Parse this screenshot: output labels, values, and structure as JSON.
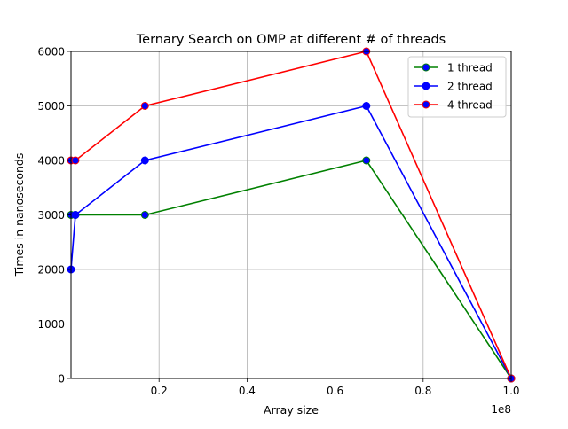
{
  "chart_data": {
    "type": "line",
    "title": "Ternary Search on OMP at different # of threads",
    "xlabel": "Array size",
    "ylabel": "Times in nanoseconds",
    "x_offset_label": "1e8",
    "xlim": [
      0,
      1.0
    ],
    "ylim": [
      0,
      6000
    ],
    "x_ticks": [
      0.2,
      0.4,
      0.6,
      0.8,
      1.0
    ],
    "x_tick_labels": [
      "0.2",
      "0.4",
      "0.6",
      "0.8",
      "1.0"
    ],
    "y_ticks": [
      0,
      1000,
      2000,
      3000,
      4000,
      5000,
      6000
    ],
    "y_tick_labels": [
      "0",
      "1000",
      "2000",
      "3000",
      "4000",
      "5000",
      "6000"
    ],
    "grid": true,
    "legend_position": "top-right",
    "series": [
      {
        "name": "1 thread",
        "line_color": "#008000",
        "marker_face": "#0000ff",
        "marker_edge": "#008000",
        "x": [
          0.0,
          0.01,
          0.168,
          0.671,
          1.0
        ],
        "y": [
          3000,
          3000,
          3000,
          4000,
          0
        ]
      },
      {
        "name": "2 thread",
        "line_color": "#0000ff",
        "marker_face": "#0000ff",
        "marker_edge": "#0000ff",
        "x": [
          0.0,
          0.01,
          0.168,
          0.671,
          1.0
        ],
        "y": [
          2000,
          3000,
          4000,
          5000,
          0
        ]
      },
      {
        "name": "4 thread",
        "line_color": "#ff0000",
        "marker_face": "#0000ff",
        "marker_edge": "#ff0000",
        "x": [
          0.0,
          0.01,
          0.168,
          0.671,
          1.0
        ],
        "y": [
          4000,
          4000,
          5000,
          6000,
          0
        ]
      }
    ]
  }
}
